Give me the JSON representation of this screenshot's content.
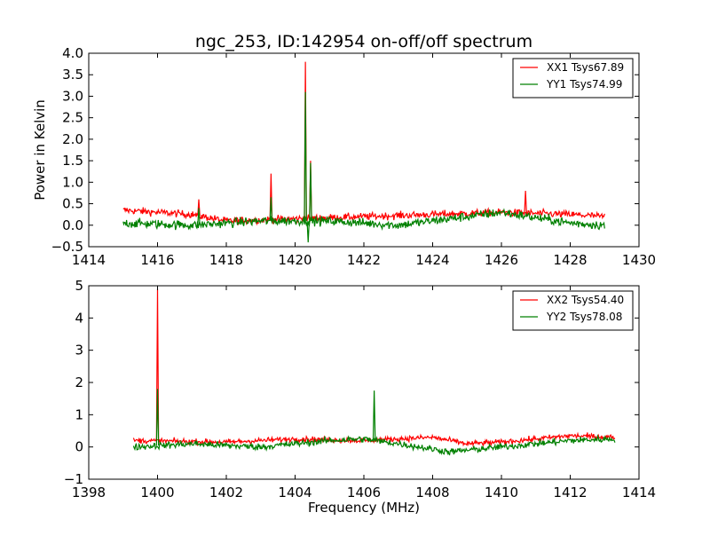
{
  "chart_data": [
    {
      "type": "line",
      "title": "ngc_253, ID:142954 on-off/off spectrum",
      "xlabel": "",
      "ylabel": "Power in Kelvin",
      "xlim": [
        1414,
        1430
      ],
      "ylim": [
        -0.5,
        4.0
      ],
      "xticks": [
        1414,
        1416,
        1418,
        1420,
        1422,
        1424,
        1426,
        1428,
        1430
      ],
      "yticks": [
        -0.5,
        0.0,
        0.5,
        1.0,
        1.5,
        2.0,
        2.5,
        3.0,
        3.5,
        4.0
      ],
      "ytick_decimals": 1,
      "legend_position": "top-right",
      "x_range": [
        1415.0,
        1429.0
      ],
      "points": 700,
      "series": [
        {
          "name": "XX1 Tsys67.89",
          "color": "#ff0000",
          "baseline": [
            [
              1415,
              0.35
            ],
            [
              1417,
              0.25
            ],
            [
              1418,
              0.1
            ],
            [
              1420,
              0.15
            ],
            [
              1422,
              0.2
            ],
            [
              1424,
              0.25
            ],
            [
              1426,
              0.3
            ],
            [
              1428,
              0.25
            ],
            [
              1429,
              0.2
            ]
          ],
          "noise": 0.08,
          "spikes": [
            [
              1417.2,
              0.6
            ],
            [
              1419.3,
              1.2
            ],
            [
              1420.3,
              3.8
            ],
            [
              1420.45,
              1.5
            ],
            [
              1426.7,
              0.8
            ]
          ]
        },
        {
          "name": "YY1 Tsys74.99",
          "color": "#008000",
          "baseline": [
            [
              1415,
              0.05
            ],
            [
              1417,
              0.0
            ],
            [
              1419,
              0.1
            ],
            [
              1421,
              0.1
            ],
            [
              1423,
              0.0
            ],
            [
              1425,
              0.2
            ],
            [
              1426,
              0.3
            ],
            [
              1428,
              0.05
            ],
            [
              1429,
              0.0
            ]
          ],
          "noise": 0.1,
          "spikes": [
            [
              1417.2,
              0.4
            ],
            [
              1419.3,
              0.65
            ],
            [
              1420.3,
              3.1
            ],
            [
              1420.38,
              -0.4
            ],
            [
              1420.45,
              1.45
            ]
          ]
        }
      ]
    },
    {
      "type": "line",
      "title": "",
      "xlabel": "Frequency (MHz)",
      "ylabel": "",
      "xlim": [
        1398,
        1414
      ],
      "ylim": [
        -1,
        5
      ],
      "xticks": [
        1398,
        1400,
        1402,
        1404,
        1406,
        1408,
        1410,
        1412,
        1414
      ],
      "yticks": [
        -1,
        0,
        1,
        2,
        3,
        4,
        5
      ],
      "ytick_decimals": 0,
      "legend_position": "top-right",
      "x_range": [
        1399.3,
        1413.3
      ],
      "points": 700,
      "series": [
        {
          "name": "XX2 Tsys54.40",
          "color": "#ff0000",
          "baseline": [
            [
              1399.3,
              0.2
            ],
            [
              1402,
              0.15
            ],
            [
              1404,
              0.25
            ],
            [
              1406,
              0.2
            ],
            [
              1408,
              0.3
            ],
            [
              1409,
              0.1
            ],
            [
              1410,
              0.15
            ],
            [
              1412,
              0.35
            ],
            [
              1413.3,
              0.3
            ]
          ],
          "noise": 0.08,
          "spikes": [
            [
              1400.0,
              4.9
            ]
          ]
        },
        {
          "name": "YY2 Tsys78.08",
          "color": "#008000",
          "baseline": [
            [
              1399.3,
              0.0
            ],
            [
              1401,
              0.1
            ],
            [
              1403,
              0.0
            ],
            [
              1405,
              0.2
            ],
            [
              1406,
              0.25
            ],
            [
              1407,
              0.1
            ],
            [
              1408.5,
              -0.15
            ],
            [
              1410,
              0.0
            ],
            [
              1412,
              0.2
            ],
            [
              1413.3,
              0.25
            ]
          ],
          "noise": 0.1,
          "spikes": [
            [
              1400.0,
              1.8
            ],
            [
              1406.3,
              1.75
            ]
          ]
        }
      ]
    }
  ]
}
